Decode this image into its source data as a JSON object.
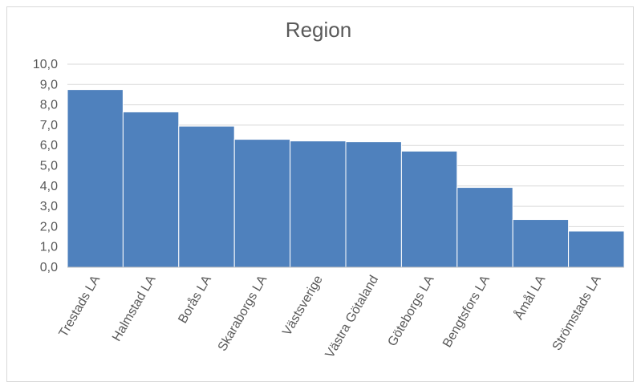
{
  "chart_data": {
    "type": "bar",
    "title": "Region",
    "categories": [
      "Trestads LA",
      "Halmstad LA",
      "Borås LA",
      "Skaraborgs LA",
      "Västsverige",
      "Västra Götaland",
      "Göteborgs LA",
      "Bengtsfors LA",
      "Åmål LA",
      "Strömstads LA"
    ],
    "values": [
      8.75,
      7.65,
      6.95,
      6.3,
      6.22,
      6.18,
      5.72,
      3.93,
      2.35,
      1.78
    ],
    "ylim": [
      0,
      10
    ],
    "yticks": [
      "0,0",
      "1,0",
      "2,0",
      "3,0",
      "4,0",
      "5,0",
      "6,0",
      "7,0",
      "8,0",
      "9,0",
      "10,0"
    ],
    "xlabel": "",
    "ylabel": "",
    "grid": true,
    "legend": "none",
    "bar_color": "#4f81bd",
    "grid_color": "#d9d9d9"
  }
}
